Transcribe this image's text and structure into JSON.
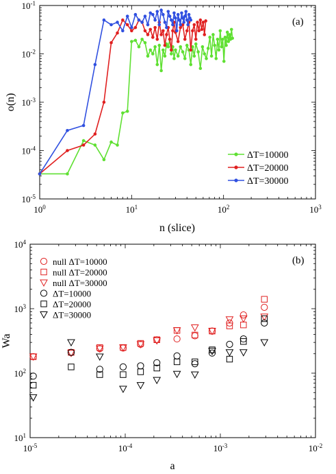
{
  "panel_a": {
    "label": "(a)",
    "xlabel": "n (slice)",
    "ylabel": "o(n)",
    "xticks": [
      "10^0",
      "10^1",
      "10^2",
      "10^3"
    ],
    "yticks": [
      "10^-5",
      "10^-4",
      "10^-3",
      "10^-2",
      "10^-1"
    ]
  },
  "panel_b": {
    "label": "(b)",
    "xlabel": "a",
    "ylabel": "Wa",
    "xticks": [
      "10^-5",
      "10^-4",
      "10^-3",
      "10^-2"
    ],
    "yticks": [
      "10^1",
      "10^2",
      "10^3",
      "10^4"
    ]
  },
  "chart_data": [
    {
      "type": "line",
      "label": "(a)",
      "xlabel": "n (slice)",
      "ylabel": "o(n)",
      "xscale": "log",
      "yscale": "log",
      "xlim": [
        1,
        1000
      ],
      "ylim": [
        1e-05,
        0.1
      ],
      "legend": "bottom-right",
      "series": [
        {
          "name": "ΔT=10000",
          "color": "#5fe032",
          "x": [
            1,
            2,
            3,
            4,
            5,
            6,
            7,
            8,
            9,
            10,
            11,
            12,
            13,
            14,
            15,
            16,
            17,
            18,
            19,
            20,
            21,
            22,
            23,
            24,
            25,
            26,
            27,
            28,
            29,
            30,
            32,
            34,
            36,
            38,
            40,
            42,
            44,
            46,
            48,
            50,
            53,
            56,
            59,
            62,
            65,
            68,
            71,
            74,
            77,
            80,
            83,
            86,
            89,
            92,
            95,
            98,
            101,
            104,
            107,
            110,
            113,
            116,
            119,
            122,
            125
          ],
          "y": [
            3.3e-05,
            3.3e-05,
            0.00016,
            0.00013,
            6.5e-05,
            0.00015,
            0.00013,
            0.0006,
            0.00065,
            0.018,
            0.019,
            0.014,
            0.02,
            0.017,
            0.009,
            0.012,
            0.01,
            0.014,
            0.006,
            0.015,
            0.0045,
            0.012,
            0.009,
            0.016,
            0.014,
            0.02,
            0.01,
            0.014,
            0.008,
            0.012,
            0.009,
            0.014,
            0.011,
            0.008,
            0.015,
            0.012,
            0.006,
            0.014,
            0.009,
            0.016,
            0.011,
            0.005,
            0.014,
            0.01,
            0.008,
            0.013,
            0.022,
            0.009,
            0.025,
            0.015,
            0.008,
            0.02,
            0.012,
            0.03,
            0.014,
            0.02,
            0.007,
            0.022,
            0.015,
            0.028,
            0.018,
            0.025,
            0.02,
            0.032,
            0.021
          ]
        },
        {
          "name": "ΔT=20000",
          "color": "#e02020",
          "x": [
            1,
            2,
            3,
            4,
            5,
            6,
            7,
            8,
            9,
            10,
            11,
            12,
            13,
            14,
            15,
            16,
            17,
            18,
            19,
            20,
            21,
            22,
            23,
            24,
            25,
            26,
            27,
            28,
            29,
            30,
            32,
            34,
            36,
            38,
            40,
            42,
            44,
            46,
            48,
            50,
            52,
            54,
            56,
            58,
            60,
            62,
            64
          ],
          "y": [
            3.3e-05,
            0.0001,
            0.00013,
            0.00022,
            0.001,
            0.017,
            0.027,
            0.05,
            0.04,
            0.03,
            0.035,
            0.05,
            0.045,
            0.03,
            0.025,
            0.032,
            0.022,
            0.035,
            0.02,
            0.045,
            0.025,
            0.03,
            0.015,
            0.025,
            0.035,
            0.02,
            0.012,
            0.03,
            0.045,
            0.028,
            0.018,
            0.035,
            0.04,
            0.02,
            0.03,
            0.045,
            0.012,
            0.03,
            0.04,
            0.02,
            0.045,
            0.03,
            0.05,
            0.032,
            0.045,
            0.025,
            0.048
          ]
        },
        {
          "name": "ΔT=30000",
          "color": "#3050e0",
          "x": [
            1,
            2,
            3,
            4,
            5,
            6,
            7,
            8,
            9,
            10,
            11,
            12,
            13,
            14,
            15,
            16,
            17,
            18,
            19,
            20,
            21,
            22,
            23,
            24,
            25,
            26,
            27,
            28,
            29,
            30,
            31,
            32,
            33,
            34,
            35,
            36,
            37,
            38,
            39,
            40,
            41,
            42,
            43,
            44
          ],
          "y": [
            3.3e-05,
            0.00026,
            0.00033,
            0.006,
            0.05,
            0.04,
            0.045,
            0.03,
            0.06,
            0.035,
            0.065,
            0.05,
            0.045,
            0.06,
            0.04,
            0.07,
            0.065,
            0.05,
            0.075,
            0.04,
            0.08,
            0.065,
            0.045,
            0.035,
            0.075,
            0.06,
            0.05,
            0.04,
            0.07,
            0.055,
            0.03,
            0.065,
            0.05,
            0.04,
            0.07,
            0.055,
            0.045,
            0.06,
            0.075,
            0.05,
            0.04,
            0.065,
            0.055,
            0.05
          ]
        }
      ]
    },
    {
      "type": "scatter",
      "label": "(b)",
      "xlabel": "a",
      "ylabel": "Wa",
      "xscale": "log",
      "yscale": "log",
      "xlim": [
        1e-05,
        0.01
      ],
      "ylim": [
        10,
        10000
      ],
      "legend": "top-left",
      "x": [
        1.08e-05,
        2.7e-05,
        5.4e-05,
        9.5e-05,
        0.000145,
        0.000215,
        0.00035,
        0.00054,
        0.00082,
        0.00125,
        0.00175,
        0.0029
      ],
      "series": [
        {
          "name": "null ΔT=10000",
          "marker": "circle",
          "color": "#e02020",
          "values": [
            180,
            210,
            240,
            245,
            280,
            330,
            340,
            380,
            450,
            600,
            800,
            1050
          ]
        },
        {
          "name": "null ΔT=20000",
          "marker": "square",
          "color": "#e02020",
          "values": [
            180,
            210,
            250,
            250,
            290,
            330,
            460,
            390,
            450,
            540,
            560,
            1400
          ]
        },
        {
          "name": "null ΔT=30000",
          "marker": "triangle-down",
          "color": "#e02020",
          "values": [
            180,
            205,
            240,
            250,
            280,
            320,
            460,
            510,
            450,
            680,
            700,
            750
          ]
        },
        {
          "name": "ΔT=10000",
          "marker": "circle",
          "color": "#000000",
          "values": [
            90,
            210,
            115,
            125,
            130,
            145,
            185,
            140,
            205,
            280,
            340,
            600
          ]
        },
        {
          "name": "ΔT=20000",
          "marker": "square",
          "color": "#000000",
          "values": [
            65,
            125,
            95,
            95,
            105,
            120,
            150,
            150,
            230,
            165,
            310,
            700
          ]
        },
        {
          "name": "ΔT=30000",
          "marker": "triangle-down",
          "color": "#000000",
          "values": [
            42,
            300,
            180,
            57,
            65,
            78,
            97,
            95,
            220,
            210,
            210,
            300
          ]
        }
      ]
    }
  ]
}
